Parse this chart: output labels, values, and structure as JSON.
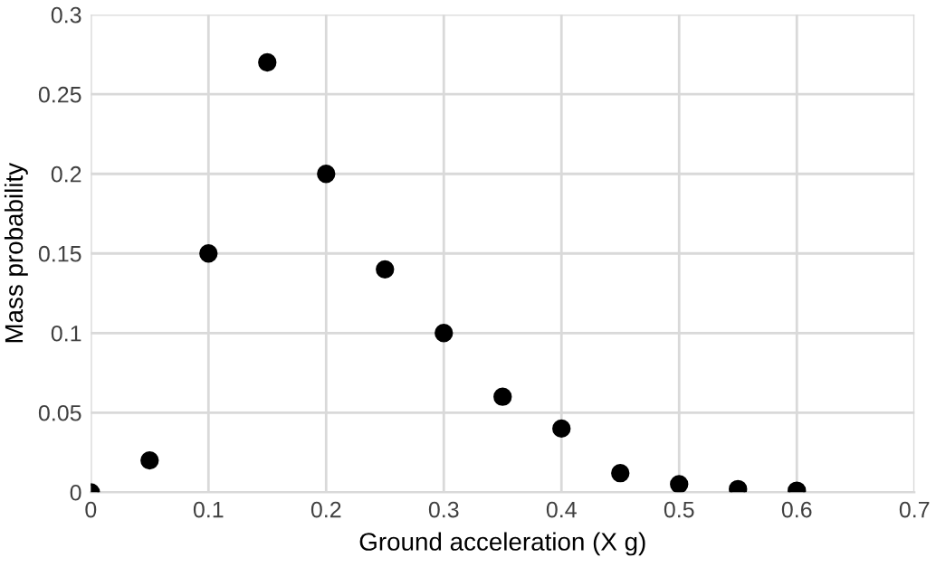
{
  "chart_data": {
    "type": "scatter",
    "xlabel": "Ground acceleration (X g)",
    "ylabel": "Mass probability",
    "x": [
      0,
      0.05,
      0.1,
      0.15,
      0.2,
      0.25,
      0.3,
      0.35,
      0.4,
      0.45,
      0.5,
      0.55,
      0.6
    ],
    "series": [
      {
        "color": "#000000",
        "values": [
          0,
          0.02,
          0.15,
          0.27,
          0.2,
          0.14,
          0.1,
          0.06,
          0.04,
          0.012,
          0.005,
          0.002,
          0.001
        ]
      }
    ],
    "xlim": [
      0,
      0.7
    ],
    "xticks": [
      0,
      0.1,
      0.2,
      0.3,
      0.4,
      0.5,
      0.6,
      0.7
    ],
    "ylim": [
      0,
      0.3
    ],
    "yticks": [
      0,
      0.05,
      0.1,
      0.15,
      0.2,
      0.25,
      0.3
    ],
    "grid": true,
    "marker": "circle"
  }
}
